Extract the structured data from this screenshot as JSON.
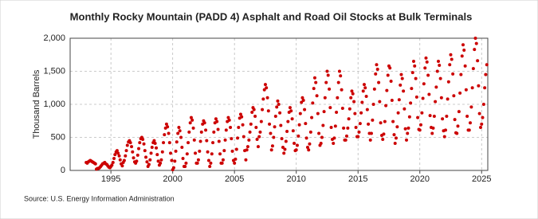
{
  "chart_data": {
    "type": "scatter",
    "title": "Monthly Rocky Mountain (PADD 4) Asphalt and Road Oil Stocks at Bulk Terminals",
    "y_label": "Thousand Barrels",
    "source": "Source: U.S. Energy Information Administration",
    "color": "#cc0000",
    "grid": true,
    "xlim": [
      1991.7,
      2025.5
    ],
    "xticks": [
      1995,
      2000,
      2005,
      2010,
      2015,
      2020,
      2025
    ],
    "ylim": [
      0,
      2000
    ],
    "yticks": [
      0,
      500,
      {
        "value": 1000,
        "label": "1,000"
      },
      {
        "value": 1500,
        "label": "1,500"
      },
      {
        "value": 2000,
        "label": "2,000"
      }
    ],
    "x": [
      1993,
      1993.08,
      1993.17,
      1993.25,
      1993.33,
      1993.42,
      1993.5,
      1993.58,
      1993.67,
      1993.75,
      1993.83,
      1993.92,
      1994,
      1994.08,
      1994.17,
      1994.25,
      1994.33,
      1994.42,
      1994.5,
      1994.58,
      1994.67,
      1994.75,
      1994.83,
      1994.92,
      1995,
      1995.08,
      1995.17,
      1995.25,
      1995.33,
      1995.42,
      1995.5,
      1995.58,
      1995.67,
      1995.75,
      1995.83,
      1995.92,
      1996,
      1996.08,
      1996.17,
      1996.25,
      1996.33,
      1996.42,
      1996.5,
      1996.58,
      1996.67,
      1996.75,
      1996.83,
      1996.92,
      1997,
      1997.08,
      1997.17,
      1997.25,
      1997.33,
      1997.42,
      1997.5,
      1997.58,
      1997.67,
      1997.75,
      1997.83,
      1997.92,
      1998,
      1998.08,
      1998.17,
      1998.25,
      1998.33,
      1998.42,
      1998.5,
      1998.58,
      1998.67,
      1998.75,
      1998.83,
      1998.92,
      1999,
      1999.08,
      1999.17,
      1999.25,
      1999.33,
      1999.42,
      1999.5,
      1999.58,
      1999.67,
      1999.75,
      1999.83,
      1999.92,
      2000,
      2000.08,
      2000.17,
      2000.25,
      2000.33,
      2000.42,
      2000.5,
      2000.58,
      2000.67,
      2000.75,
      2000.83,
      2000.92,
      2001,
      2001.08,
      2001.17,
      2001.25,
      2001.33,
      2001.42,
      2001.5,
      2001.58,
      2001.67,
      2001.75,
      2001.83,
      2001.92,
      2002,
      2002.08,
      2002.17,
      2002.25,
      2002.33,
      2002.42,
      2002.5,
      2002.58,
      2002.67,
      2002.75,
      2002.83,
      2002.92,
      2003,
      2003.08,
      2003.17,
      2003.25,
      2003.33,
      2003.42,
      2003.5,
      2003.58,
      2003.67,
      2003.75,
      2003.83,
      2003.92,
      2004,
      2004.08,
      2004.17,
      2004.25,
      2004.33,
      2004.42,
      2004.5,
      2004.58,
      2004.67,
      2004.75,
      2004.83,
      2004.92,
      2005,
      2005.08,
      2005.17,
      2005.25,
      2005.33,
      2005.42,
      2005.5,
      2005.58,
      2005.67,
      2005.75,
      2005.83,
      2005.92,
      2006,
      2006.08,
      2006.17,
      2006.25,
      2006.33,
      2006.42,
      2006.5,
      2006.58,
      2006.67,
      2006.75,
      2006.83,
      2006.92,
      2007,
      2007.08,
      2007.17,
      2007.25,
      2007.33,
      2007.42,
      2007.5,
      2007.58,
      2007.67,
      2007.75,
      2007.83,
      2007.92,
      2008,
      2008.08,
      2008.17,
      2008.25,
      2008.33,
      2008.42,
      2008.5,
      2008.58,
      2008.67,
      2008.75,
      2008.83,
      2008.92,
      2009,
      2009.08,
      2009.17,
      2009.25,
      2009.33,
      2009.42,
      2009.5,
      2009.58,
      2009.67,
      2009.75,
      2009.83,
      2009.92,
      2010,
      2010.08,
      2010.17,
      2010.25,
      2010.33,
      2010.42,
      2010.5,
      2010.58,
      2010.67,
      2010.75,
      2010.83,
      2010.92,
      2011,
      2011.08,
      2011.17,
      2011.25,
      2011.33,
      2011.42,
      2011.5,
      2011.58,
      2011.67,
      2011.75,
      2011.83,
      2011.92,
      2012,
      2012.08,
      2012.17,
      2012.25,
      2012.33,
      2012.42,
      2012.5,
      2012.58,
      2012.67,
      2012.75,
      2012.83,
      2012.92,
      2013,
      2013.08,
      2013.17,
      2013.25,
      2013.33,
      2013.42,
      2013.5,
      2013.58,
      2013.67,
      2013.75,
      2013.83,
      2013.92,
      2014,
      2014.08,
      2014.17,
      2014.25,
      2014.33,
      2014.42,
      2014.5,
      2014.58,
      2014.67,
      2014.75,
      2014.83,
      2014.92,
      2015,
      2015.08,
      2015.17,
      2015.25,
      2015.33,
      2015.42,
      2015.5,
      2015.58,
      2015.67,
      2015.75,
      2015.83,
      2015.92,
      2016,
      2016.08,
      2016.17,
      2016.25,
      2016.33,
      2016.42,
      2016.5,
      2016.58,
      2016.67,
      2016.75,
      2016.83,
      2016.92,
      2017,
      2017.08,
      2017.17,
      2017.25,
      2017.33,
      2017.42,
      2017.5,
      2017.58,
      2017.67,
      2017.75,
      2017.83,
      2017.92,
      2018,
      2018.08,
      2018.17,
      2018.25,
      2018.33,
      2018.42,
      2018.5,
      2018.58,
      2018.67,
      2018.75,
      2018.83,
      2018.92,
      2019,
      2019.08,
      2019.17,
      2019.25,
      2019.33,
      2019.42,
      2019.5,
      2019.58,
      2019.67,
      2019.75,
      2019.83,
      2019.92,
      2020,
      2020.08,
      2020.17,
      2020.25,
      2020.33,
      2020.42,
      2020.5,
      2020.58,
      2020.67,
      2020.75,
      2020.83,
      2020.92,
      2021,
      2021.08,
      2021.17,
      2021.25,
      2021.33,
      2021.42,
      2021.5,
      2021.58,
      2021.67,
      2021.75,
      2021.83,
      2021.92,
      2022,
      2022.08,
      2022.17,
      2022.25,
      2022.33,
      2022.42,
      2022.5,
      2022.58,
      2022.67,
      2022.75,
      2022.83,
      2022.92,
      2023,
      2023.08,
      2023.17,
      2023.25,
      2023.33,
      2023.42,
      2023.5,
      2023.58,
      2023.67,
      2023.75,
      2023.83,
      2023.92,
      2024,
      2024.08,
      2024.17,
      2024.25,
      2024.33,
      2024.42,
      2024.5,
      2024.58,
      2024.67,
      2024.75,
      2024.83,
      2024.92,
      2025,
      2025.08,
      2025.17,
      2025.25,
      2025.33,
      2025.42
    ],
    "values": [
      120,
      110,
      130,
      140,
      150,
      140,
      130,
      120,
      110,
      100,
      20,
      30,
      30,
      40,
      60,
      80,
      100,
      110,
      120,
      100,
      90,
      70,
      50,
      40,
      60,
      80,
      120,
      180,
      240,
      280,
      300,
      260,
      220,
      160,
      100,
      70,
      120,
      150,
      220,
      300,
      380,
      430,
      450,
      420,
      360,
      280,
      190,
      130,
      110,
      140,
      230,
      330,
      420,
      480,
      500,
      470,
      400,
      300,
      200,
      130,
      60,
      90,
      160,
      260,
      350,
      420,
      450,
      410,
      340,
      240,
      140,
      80,
      110,
      160,
      280,
      420,
      540,
      640,
      700,
      660,
      560,
      420,
      260,
      150,
      10,
      40,
      140,
      290,
      430,
      560,
      650,
      600,
      500,
      350,
      180,
      60,
      60,
      110,
      250,
      420,
      580,
      720,
      800,
      760,
      640,
      460,
      260,
      110,
      110,
      160,
      290,
      440,
      580,
      700,
      750,
      720,
      610,
      450,
      280,
      150,
      60,
      110,
      250,
      420,
      580,
      720,
      780,
      740,
      620,
      440,
      250,
      110,
      110,
      160,
      300,
      460,
      610,
      740,
      800,
      760,
      650,
      480,
      290,
      150,
      110,
      170,
      320,
      490,
      650,
      790,
      850,
      810,
      690,
      510,
      300,
      160,
      310,
      360,
      460,
      580,
      700,
      880,
      950,
      920,
      820,
      650,
      470,
      360,
      510,
      580,
      740,
      920,
      1080,
      1220,
      1300,
      1250,
      1100,
      900,
      700,
      560,
      310,
      370,
      500,
      660,
      820,
      960,
      1050,
      1000,
      870,
      680,
      480,
      350,
      260,
      320,
      440,
      590,
      740,
      880,
      950,
      900,
      780,
      600,
      410,
      300,
      310,
      380,
      520,
      690,
      860,
      1030,
      1100,
      1060,
      920,
      710,
      490,
      350,
      310,
      400,
      580,
      800,
      1020,
      1240,
      1400,
      1330,
      1130,
      860,
      560,
      380,
      410,
      500,
      680,
      890,
      1100,
      1330,
      1500,
      1440,
      1230,
      950,
      650,
      470,
      410,
      490,
      670,
      880,
      1100,
      1330,
      1500,
      1430,
      1220,
      940,
      640,
      460,
      460,
      520,
      640,
      780,
      930,
      1100,
      1200,
      1160,
      1040,
      860,
      650,
      510,
      510,
      580,
      710,
      870,
      1030,
      1200,
      1300,
      1250,
      1120,
      920,
      700,
      560,
      460,
      560,
      760,
      1000,
      1230,
      1460,
      1600,
      1530,
      1330,
      1040,
      720,
      530,
      470,
      550,
      740,
      980,
      1210,
      1440,
      1580,
      1550,
      1350,
      1060,
      740,
      540,
      410,
      490,
      660,
      870,
      1070,
      1290,
      1450,
      1390,
      1200,
      930,
      630,
      460,
      560,
      640,
      810,
      1020,
      1240,
      1480,
      1650,
      1580,
      1390,
      1110,
      800,
      620,
      610,
      690,
      870,
      1090,
      1310,
      1550,
      1700,
      1640,
      1440,
      1150,
      830,
      650,
      560,
      640,
      820,
      1040,
      1260,
      1500,
      1650,
      1590,
      1390,
      1100,
      780,
      600,
      510,
      610,
      820,
      1080,
      1340,
      1600,
      1750,
      1680,
      1460,
      1130,
      770,
      570,
      560,
      670,
      890,
      1170,
      1450,
      1730,
      1900,
      1820,
      1580,
      1220,
      820,
      610,
      610,
      720,
      960,
      1250,
      1540,
      1830,
      2000,
      1920,
      1660,
      1280,
      860,
      650,
      700,
      800,
      1000,
      1250,
      1450,
      1600
    ]
  }
}
